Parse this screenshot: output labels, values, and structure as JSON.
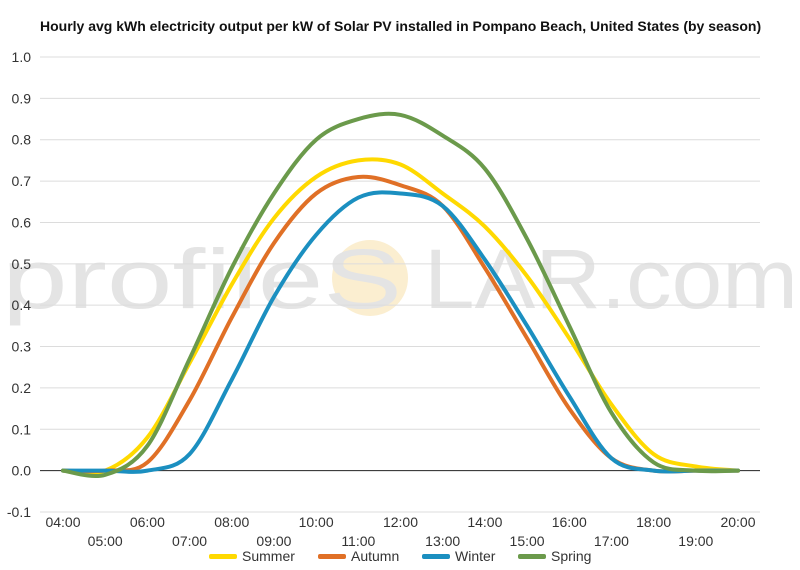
{
  "title": "Hourly avg kWh electricity output per kW of Solar PV installed in Pompano Beach, United States (by season)",
  "watermark": "profileSOLAR.com",
  "watermark_parts": {
    "left": "profileS",
    "right": "LAR.com"
  },
  "chart_data": {
    "type": "line",
    "title": "Hourly avg kWh electricity output per kW of Solar PV installed in Pompano Beach, United States (by season)",
    "xlabel": "",
    "ylabel": "",
    "ylim": [
      -0.1,
      1.0
    ],
    "yticks": [
      -0.1,
      0.0,
      0.1,
      0.2,
      0.3,
      0.4,
      0.5,
      0.6,
      0.7,
      0.8,
      0.9,
      1.0
    ],
    "ytick_labels": [
      "-0.1",
      "0.0",
      "0.1",
      "0.2",
      "0.3",
      "0.4",
      "0.5",
      "0.6",
      "0.7",
      "0.8",
      "0.9",
      "1.0"
    ],
    "grid": true,
    "legend_position": "bottom",
    "categories": [
      "04:00",
      "05:00",
      "06:00",
      "07:00",
      "08:00",
      "09:00",
      "10:00",
      "11:00",
      "12:00",
      "13:00",
      "14:00",
      "15:00",
      "16:00",
      "17:00",
      "18:00",
      "19:00",
      "20:00"
    ],
    "series": [
      {
        "name": "Summer",
        "color": "#ffd900",
        "values": [
          0.0,
          0.0,
          0.08,
          0.26,
          0.45,
          0.61,
          0.71,
          0.75,
          0.74,
          0.67,
          0.59,
          0.47,
          0.32,
          0.16,
          0.04,
          0.01,
          0.0
        ]
      },
      {
        "name": "Autumn",
        "color": "#e07026",
        "values": [
          0.0,
          0.0,
          0.02,
          0.17,
          0.37,
          0.55,
          0.67,
          0.71,
          0.69,
          0.64,
          0.49,
          0.32,
          0.15,
          0.03,
          0.0,
          0.0,
          0.0
        ]
      },
      {
        "name": "Winter",
        "color": "#1b8fc0",
        "values": [
          0.0,
          0.0,
          0.0,
          0.04,
          0.22,
          0.42,
          0.57,
          0.66,
          0.67,
          0.64,
          0.51,
          0.35,
          0.18,
          0.03,
          0.0,
          0.0,
          0.0
        ]
      },
      {
        "name": "Spring",
        "color": "#6b9a4b",
        "values": [
          0.0,
          -0.01,
          0.06,
          0.27,
          0.49,
          0.67,
          0.8,
          0.85,
          0.86,
          0.81,
          0.73,
          0.56,
          0.35,
          0.14,
          0.02,
          0.0,
          0.0
        ]
      }
    ]
  }
}
